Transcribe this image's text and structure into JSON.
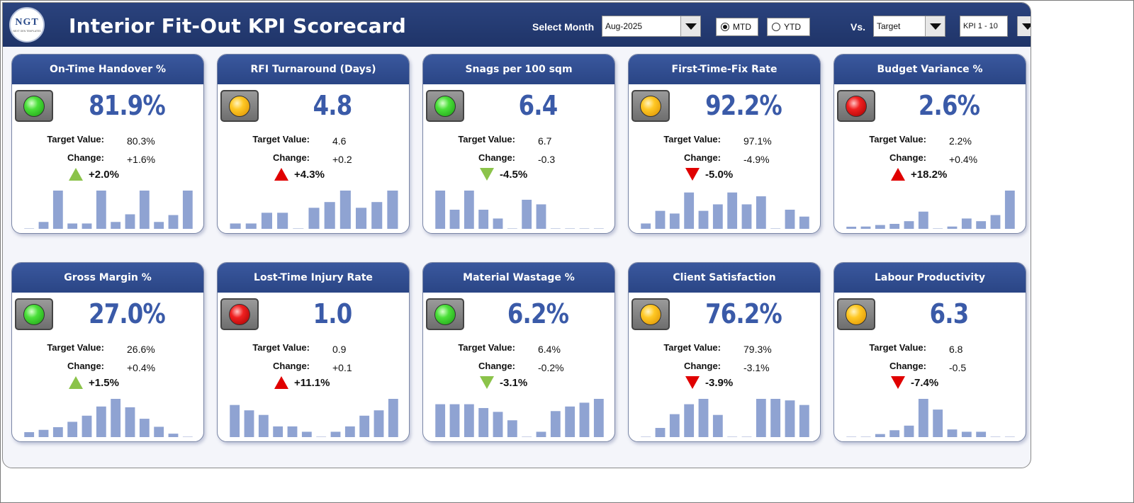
{
  "header": {
    "title": "Interior Fit-Out KPI Scorecard",
    "logo_text": "NGT",
    "logo_sub": "NEXT GEN TEMPLATES",
    "select_month_label": "Select Month",
    "month_value": "Aug-2025",
    "mtd_label": "MTD",
    "ytd_label": "YTD",
    "mtd_selected": true,
    "vs_label": "Vs.",
    "compare_value": "Target",
    "kpi_range_value": "KPI 1 - 10"
  },
  "labels": {
    "target": "Target Value:",
    "change": "Change:"
  },
  "colors": {
    "bar": "#8fa3d2",
    "header": "#2a4585",
    "value": "#3a5aa8",
    "up_good": "#8bc34a",
    "bad": "#e00000"
  },
  "kpis": [
    {
      "title": "On-Time Handover %",
      "value": "81.9%",
      "target": "80.3%",
      "change": "+1.6%",
      "delta": "+2.0%",
      "status": "green",
      "arrow": "up-green",
      "bars": [
        0,
        0.18,
        1,
        0.14,
        0.14,
        1,
        0.18,
        0.38,
        1,
        0.18,
        0.36,
        1
      ]
    },
    {
      "title": "RFI Turnaround (Days)",
      "value": "4.8",
      "target": "4.6",
      "change": "+0.2",
      "delta": "+4.3%",
      "status": "amber",
      "arrow": "up-red",
      "bars": [
        0.14,
        0.14,
        0.42,
        0.42,
        0,
        0.55,
        0.7,
        1,
        0.55,
        0.7,
        1
      ]
    },
    {
      "title": "Snags per 100 sqm",
      "value": "6.4",
      "target": "6.7",
      "change": "-0.3",
      "delta": "-4.5%",
      "status": "green",
      "arrow": "down-green",
      "bars": [
        1,
        0.5,
        1,
        0.5,
        0.27,
        0,
        0.76,
        0.64,
        0,
        0,
        0,
        0
      ]
    },
    {
      "title": "First-Time-Fix Rate",
      "value": "92.2%",
      "target": "97.1%",
      "change": "-4.9%",
      "delta": "-5.0%",
      "status": "amber",
      "arrow": "down-red",
      "bars": [
        0.14,
        0.47,
        0.4,
        0.95,
        0.47,
        0.64,
        0.95,
        0.64,
        0.85,
        0,
        0.5,
        0.32
      ]
    },
    {
      "title": "Budget Variance %",
      "value": "2.6%",
      "target": "2.2%",
      "change": "+0.4%",
      "delta": "+18.2%",
      "status": "red",
      "arrow": "up-red",
      "bars": [
        0.04,
        0.06,
        0.1,
        0.13,
        0.2,
        0.45,
        0,
        0.06,
        0.27,
        0.2,
        0.36,
        1
      ]
    },
    {
      "title": "Gross Margin %",
      "value": "27.0%",
      "target": "26.6%",
      "change": "+0.4%",
      "delta": "+1.5%",
      "status": "green",
      "arrow": "up-green",
      "bars": [
        0.13,
        0.19,
        0.26,
        0.4,
        0.56,
        0.8,
        1,
        0.78,
        0.48,
        0.27,
        0.09,
        0
      ]
    },
    {
      "title": "Lost-Time Injury Rate",
      "value": "1.0",
      "target": "0.9",
      "change": "+0.1",
      "delta": "+11.1%",
      "status": "red",
      "arrow": "up-red",
      "bars": [
        0.84,
        0.7,
        0.58,
        0.28,
        0.28,
        0.14,
        0,
        0.14,
        0.28,
        0.56,
        0.7,
        1
      ]
    },
    {
      "title": "Material Wastage %",
      "value": "6.2%",
      "target": "6.4%",
      "change": "-0.2%",
      "delta": "-3.1%",
      "status": "green",
      "arrow": "down-green",
      "bars": [
        0.86,
        0.86,
        0.86,
        0.76,
        0.66,
        0.44,
        0,
        0.14,
        0.68,
        0.8,
        0.9,
        1
      ]
    },
    {
      "title": "Client Satisfaction",
      "value": "76.2%",
      "target": "79.3%",
      "change": "-3.1%",
      "delta": "-3.9%",
      "status": "amber",
      "arrow": "down-red",
      "bars": [
        0,
        0.24,
        0.6,
        0.86,
        1,
        0.58,
        0,
        0,
        1,
        1,
        0.96,
        0.84
      ]
    },
    {
      "title": "Labour Productivity",
      "value": "6.3",
      "target": "6.8",
      "change": "-0.5",
      "delta": "-7.4%",
      "status": "amber",
      "arrow": "down-red",
      "bars": [
        0,
        0,
        0.08,
        0.18,
        0.3,
        1,
        0.72,
        0.2,
        0.14,
        0.14,
        0,
        0
      ]
    }
  ]
}
